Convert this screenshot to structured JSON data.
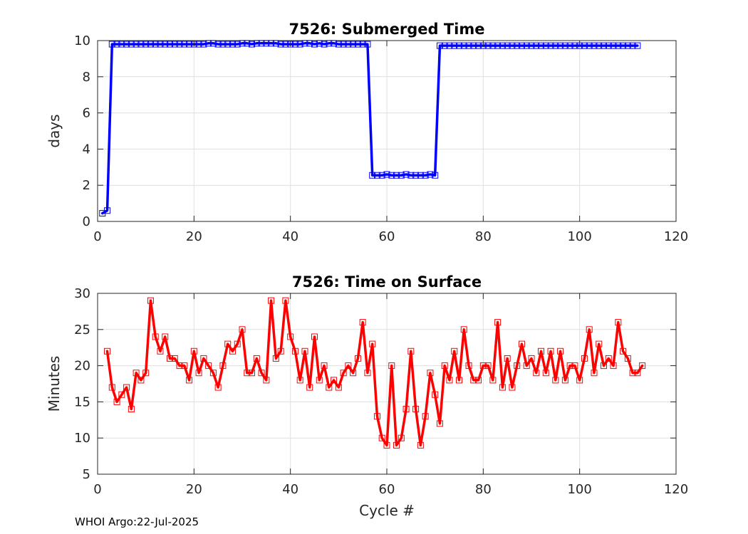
{
  "footer": {
    "note": "WHOI Argo:22-Jul-2025"
  },
  "chart_data": [
    {
      "type": "line",
      "title": "7526: Submerged Time",
      "xlabel": "",
      "ylabel": "days",
      "xlim": [
        0,
        120
      ],
      "ylim": [
        0,
        10
      ],
      "xticks": [
        0,
        20,
        40,
        60,
        80,
        100,
        120
      ],
      "yticks": [
        0,
        2,
        4,
        6,
        8,
        10
      ],
      "grid": true,
      "color": "#0000ff",
      "marker": "square",
      "series": [
        {
          "name": "Submerged Time",
          "x": [
            1,
            2,
            3,
            4,
            5,
            6,
            7,
            8,
            9,
            10,
            11,
            12,
            13,
            14,
            15,
            16,
            17,
            18,
            19,
            20,
            21,
            22,
            23,
            24,
            25,
            26,
            27,
            28,
            29,
            30,
            31,
            32,
            33,
            34,
            35,
            36,
            37,
            38,
            39,
            40,
            41,
            42,
            43,
            44,
            45,
            46,
            47,
            48,
            49,
            50,
            51,
            52,
            53,
            54,
            55,
            56,
            57,
            58,
            59,
            60,
            61,
            62,
            63,
            64,
            65,
            66,
            67,
            68,
            69,
            70,
            71,
            72,
            73,
            74,
            75,
            76,
            77,
            78,
            79,
            80,
            81,
            82,
            83,
            84,
            85,
            86,
            87,
            88,
            89,
            90,
            91,
            92,
            93,
            94,
            95,
            96,
            97,
            98,
            99,
            100,
            101,
            102,
            103,
            104,
            105,
            106,
            107,
            108,
            109,
            110,
            111,
            112
          ],
          "y": [
            0.45,
            0.6,
            9.8,
            9.8,
            9.8,
            9.8,
            9.8,
            9.8,
            9.8,
            9.8,
            9.8,
            9.8,
            9.8,
            9.8,
            9.8,
            9.8,
            9.8,
            9.8,
            9.8,
            9.8,
            9.8,
            9.8,
            9.85,
            9.85,
            9.8,
            9.8,
            9.8,
            9.8,
            9.8,
            9.85,
            9.85,
            9.8,
            9.85,
            9.85,
            9.85,
            9.85,
            9.85,
            9.8,
            9.8,
            9.8,
            9.8,
            9.8,
            9.85,
            9.85,
            9.8,
            9.85,
            9.8,
            9.85,
            9.85,
            9.8,
            9.8,
            9.8,
            9.8,
            9.8,
            9.8,
            9.8,
            2.55,
            2.55,
            2.55,
            2.6,
            2.55,
            2.55,
            2.55,
            2.6,
            2.55,
            2.55,
            2.55,
            2.55,
            2.6,
            2.55,
            9.72,
            9.72,
            9.72,
            9.72,
            9.72,
            9.72,
            9.72,
            9.72,
            9.72,
            9.72,
            9.72,
            9.72,
            9.72,
            9.72,
            9.72,
            9.72,
            9.72,
            9.72,
            9.72,
            9.72,
            9.72,
            9.72,
            9.72,
            9.72,
            9.72,
            9.72,
            9.72,
            9.72,
            9.72,
            9.72,
            9.72,
            9.72,
            9.72,
            9.72,
            9.72,
            9.72,
            9.72,
            9.72,
            9.72,
            9.72,
            9.72,
            9.72
          ]
        }
      ]
    },
    {
      "type": "line",
      "title": "7526: Time on Surface",
      "xlabel": "Cycle #",
      "ylabel": "Minutes",
      "xlim": [
        0,
        120
      ],
      "ylim": [
        5,
        30
      ],
      "xticks": [
        0,
        20,
        40,
        60,
        80,
        100,
        120
      ],
      "yticks": [
        5,
        10,
        15,
        20,
        25,
        30
      ],
      "grid": true,
      "color": "#ff0000",
      "marker": "square",
      "series": [
        {
          "name": "Time on Surface",
          "x": [
            2,
            3,
            4,
            5,
            6,
            7,
            8,
            9,
            10,
            11,
            12,
            13,
            14,
            15,
            16,
            17,
            18,
            19,
            20,
            21,
            22,
            23,
            24,
            25,
            26,
            27,
            28,
            29,
            30,
            31,
            32,
            33,
            34,
            35,
            36,
            37,
            38,
            39,
            40,
            41,
            42,
            43,
            44,
            45,
            46,
            47,
            48,
            49,
            50,
            51,
            52,
            53,
            54,
            55,
            56,
            57,
            58,
            59,
            60,
            61,
            62,
            63,
            64,
            65,
            66,
            67,
            68,
            69,
            70,
            71,
            72,
            73,
            74,
            75,
            76,
            77,
            78,
            79,
            80,
            81,
            82,
            83,
            84,
            85,
            86,
            87,
            88,
            89,
            90,
            91,
            92,
            93,
            94,
            95,
            96,
            97,
            98,
            99,
            100,
            101,
            102,
            103,
            104,
            105,
            106,
            107,
            108,
            109,
            110,
            111,
            112,
            113
          ],
          "y": [
            22,
            17,
            15,
            16,
            17,
            14,
            19,
            18,
            19,
            29,
            24,
            22,
            24,
            21,
            21,
            20,
            20,
            18,
            22,
            19,
            21,
            20,
            19,
            17,
            20,
            23,
            22,
            23,
            25,
            19,
            19,
            21,
            19,
            18,
            29,
            21,
            22,
            29,
            24,
            22,
            18,
            22,
            17,
            24,
            18,
            20,
            17,
            18,
            17,
            19,
            20,
            19,
            21,
            26,
            19,
            23,
            13,
            10,
            9,
            20,
            9,
            10,
            14,
            22,
            14,
            9,
            13,
            19,
            16,
            12,
            20,
            18,
            22,
            18,
            25,
            20,
            18,
            18,
            20,
            20,
            18,
            26,
            17,
            21,
            17,
            20,
            23,
            20,
            21,
            19,
            22,
            19,
            22,
            18,
            22,
            18,
            20,
            20,
            18,
            21,
            25,
            19,
            23,
            20,
            21,
            20,
            26,
            22,
            21,
            19,
            19,
            20
          ]
        }
      ]
    }
  ]
}
